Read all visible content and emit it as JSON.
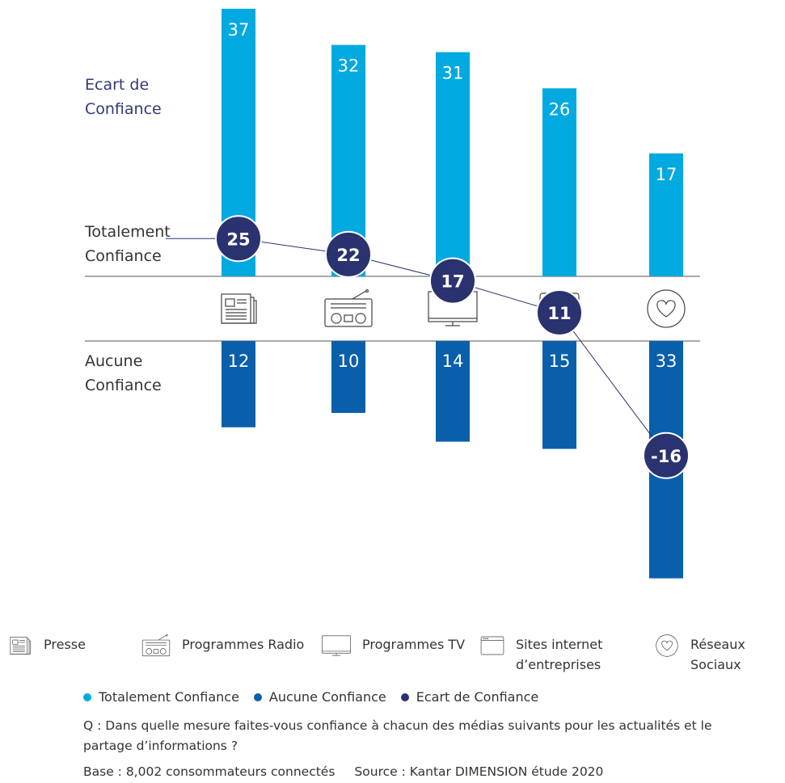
{
  "colors": {
    "totalement": "#00a9e0",
    "aucune": "#0a5fab",
    "ecart": "#2a336f",
    "axis": "#555555",
    "icon": "#444444"
  },
  "row_labels": {
    "ecart": "Ecart de\nConfiance",
    "totalement": "Totalement\nConfiance",
    "aucune": "Aucune\nConfiance"
  },
  "chart_data": {
    "type": "bar",
    "categories": [
      "Presse",
      "Programmes Radio",
      "Programmes TV",
      "Sites internet d'entreprises",
      "Réseaux Sociaux"
    ],
    "category_icons": [
      "newspaper-icon",
      "radio-icon",
      "tv-icon",
      "website-icon",
      "heart-icon"
    ],
    "series": [
      {
        "name": "Totalement Confiance",
        "values": [
          37,
          32,
          31,
          26,
          17
        ],
        "labels": [
          "37",
          "32",
          "31",
          "26",
          "17"
        ]
      },
      {
        "name": "Aucune Confiance",
        "values": [
          12,
          10,
          14,
          15,
          33
        ],
        "labels": [
          "12",
          "10",
          "14",
          "15",
          "33"
        ]
      },
      {
        "name": "Ecart de Confiance",
        "values": [
          25,
          22,
          17,
          11,
          -16
        ],
        "labels": [
          "25",
          "22",
          "17",
          "11",
          "-16"
        ]
      }
    ]
  },
  "legend": {
    "items": [
      {
        "icon": "newspaper-icon",
        "label": "Presse"
      },
      {
        "icon": "radio-icon",
        "label": "Programmes Radio"
      },
      {
        "icon": "tv-icon",
        "label": "Programmes TV"
      },
      {
        "icon": "website-icon",
        "label": "Sites internet\nd’entreprises"
      },
      {
        "icon": "heart-icon",
        "label": "Réseaux\nSociaux"
      }
    ],
    "series": [
      "Totalement Confiance",
      "Aucune Confiance",
      "Ecart de Confiance"
    ]
  },
  "notes": {
    "question": "Q : Dans quelle mesure faites-vous confiance à chacun des médias suivants pour les actualités et le partage d’informations ?",
    "base": "Base : 8,002 consommateurs connectés",
    "source": "Source : Kantar DIMENSION étude 2020"
  }
}
